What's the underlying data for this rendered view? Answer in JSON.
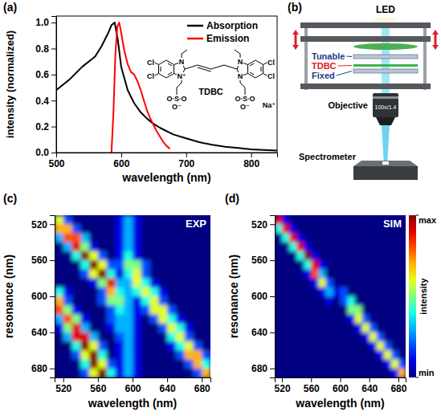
{
  "chart_data": [
    {
      "type": "line",
      "panel": "(a)",
      "x_label": "wavelength (nm)",
      "y_label": "intensity (normalized)",
      "xlim": [
        500,
        840
      ],
      "ylim": [
        0,
        1.05
      ],
      "xticks": [
        500,
        600,
        700,
        800
      ],
      "yticks": [
        {
          "value": 0,
          "label": "0.0"
        },
        0.2,
        0.4,
        0.6,
        0.8,
        {
          "value": 1,
          "label": "1.0"
        }
      ],
      "legend": "top-right",
      "series": [
        {
          "name": "Absorption",
          "color": "#000000",
          "x": [
            500,
            510,
            520,
            530,
            540,
            550,
            560,
            570,
            580,
            585,
            590,
            595,
            600,
            610,
            620,
            630,
            640,
            650,
            660,
            680,
            700,
            720,
            740,
            760,
            780,
            800,
            820,
            840
          ],
          "values": [
            0.48,
            0.52,
            0.56,
            0.61,
            0.66,
            0.7,
            0.74,
            0.82,
            0.92,
            0.98,
            1.0,
            0.86,
            0.66,
            0.48,
            0.38,
            0.31,
            0.26,
            0.22,
            0.19,
            0.14,
            0.11,
            0.08,
            0.06,
            0.045,
            0.035,
            0.025,
            0.02,
            0.015
          ]
        },
        {
          "name": "Emission",
          "color": "#ff0000",
          "x": [
            585,
            588,
            591,
            594,
            597,
            600,
            605,
            610,
            615,
            620,
            625,
            630,
            635,
            640,
            645,
            650,
            655,
            660,
            665,
            670,
            675
          ],
          "values": [
            0.0,
            0.3,
            0.75,
            0.97,
            1.0,
            0.92,
            0.78,
            0.68,
            0.62,
            0.6,
            0.55,
            0.48,
            0.4,
            0.32,
            0.26,
            0.21,
            0.16,
            0.12,
            0.08,
            0.05,
            0.03
          ]
        }
      ]
    },
    {
      "type": "heatmap",
      "panel": "(c)",
      "annotation": "EXP",
      "x_label": "wavelength (nm)",
      "y_label": "resonance (nm)",
      "xlim": [
        510,
        690
      ],
      "ylim": [
        690,
        510
      ],
      "xticks": [
        520,
        560,
        600,
        640,
        680
      ],
      "yticks": [
        520,
        560,
        600,
        640,
        680
      ],
      "zlim": [
        0,
        10
      ],
      "x": [
        515,
        525,
        535,
        545,
        555,
        565,
        575,
        585,
        595,
        605,
        615,
        625,
        635,
        645,
        655,
        665,
        675,
        685
      ],
      "y": [
        515,
        525,
        535,
        545,
        555,
        565,
        575,
        585,
        595,
        605,
        615,
        625,
        635,
        645,
        655,
        665,
        675,
        685
      ],
      "z": [
        [
          6,
          2,
          0,
          0,
          0,
          0,
          0,
          1,
          3,
          1,
          0,
          0,
          0,
          0,
          0,
          0,
          0,
          0
        ],
        [
          7,
          7,
          2,
          0,
          0,
          0,
          0,
          1,
          3,
          1,
          0,
          0,
          0,
          0,
          0,
          0,
          0,
          0
        ],
        [
          3,
          8,
          8,
          3,
          0,
          0,
          0,
          1,
          3,
          1,
          0,
          0,
          0,
          0,
          0,
          0,
          0,
          0
        ],
        [
          0,
          3,
          9,
          5,
          1,
          0,
          0,
          1,
          3,
          1,
          0,
          0,
          0,
          0,
          0,
          0,
          0,
          0
        ],
        [
          0,
          0,
          4,
          10,
          6,
          2,
          0,
          1,
          4,
          1,
          0,
          0,
          0,
          0,
          0,
          0,
          0,
          0
        ],
        [
          0,
          0,
          0,
          4,
          10,
          6,
          2,
          2,
          5,
          5,
          2,
          0,
          0,
          0,
          0,
          0,
          0,
          0
        ],
        [
          0,
          0,
          0,
          2,
          6,
          10,
          4,
          1,
          4,
          6,
          2,
          0,
          0,
          0,
          0,
          0,
          0,
          0
        ],
        [
          0,
          0,
          0,
          0,
          1,
          5,
          9,
          3,
          3,
          6,
          4,
          1,
          0,
          0,
          0,
          0,
          0,
          0
        ],
        [
          4,
          1,
          0,
          0,
          0,
          2,
          7,
          4,
          3,
          4,
          6,
          4,
          1,
          0,
          0,
          0,
          0,
          0
        ],
        [
          7,
          2,
          0,
          0,
          0,
          2,
          5,
          5,
          3,
          1,
          4,
          6,
          2,
          0,
          0,
          0,
          0,
          0
        ],
        [
          8,
          5,
          1,
          0,
          0,
          0,
          2,
          4,
          3,
          1,
          2,
          6,
          6,
          2,
          0,
          0,
          0,
          0
        ],
        [
          3,
          8,
          5,
          1,
          0,
          0,
          2,
          3,
          3,
          1,
          0,
          2,
          6,
          4,
          1,
          0,
          0,
          0
        ],
        [
          1,
          5,
          9,
          3,
          0,
          0,
          1,
          3,
          3,
          1,
          0,
          0,
          2,
          6,
          4,
          1,
          0,
          0
        ],
        [
          0,
          3,
          9,
          9,
          3,
          0,
          0,
          2,
          3,
          1,
          0,
          0,
          0,
          4,
          6,
          2,
          0,
          0
        ],
        [
          0,
          0,
          4,
          10,
          6,
          2,
          0,
          1,
          3,
          1,
          0,
          0,
          0,
          1,
          4,
          6,
          2,
          0
        ],
        [
          0,
          0,
          2,
          6,
          10,
          4,
          0,
          1,
          3,
          1,
          0,
          0,
          0,
          0,
          2,
          7,
          7,
          2
        ],
        [
          0,
          0,
          0,
          4,
          10,
          6,
          2,
          1,
          3,
          1,
          0,
          0,
          0,
          0,
          0,
          2,
          7,
          4
        ],
        [
          0,
          0,
          0,
          2,
          6,
          10,
          4,
          1,
          3,
          1,
          0,
          0,
          0,
          0,
          0,
          0,
          2,
          7
        ]
      ]
    },
    {
      "type": "heatmap",
      "panel": "(d)",
      "annotation": "SIM",
      "x_label": "wavelength (nm)",
      "y_label": "resonance (nm)",
      "xlim": [
        510,
        690
      ],
      "ylim": [
        690,
        510
      ],
      "xticks": [
        520,
        560,
        600,
        640,
        680
      ],
      "yticks": [
        520,
        560,
        600,
        640,
        680
      ],
      "colorbar": {
        "range": [
          0,
          10
        ],
        "ticks": [
          {
            "value": 0,
            "label": "min"
          },
          {
            "value": 10,
            "label": "max"
          }
        ],
        "label": "intensity"
      },
      "x": [
        515,
        525,
        535,
        545,
        555,
        565,
        575,
        585,
        595,
        605,
        615,
        625,
        635,
        645,
        655,
        665,
        675,
        685
      ],
      "y": [
        515,
        525,
        535,
        545,
        555,
        565,
        575,
        585,
        595,
        605,
        615,
        625,
        635,
        645,
        655,
        665,
        675,
        685
      ],
      "z": [
        [
          9,
          1,
          0,
          0,
          0,
          0,
          0,
          0,
          0,
          0,
          0,
          0,
          0,
          0,
          0,
          0,
          0,
          0
        ],
        [
          4,
          9,
          1,
          0,
          0,
          0,
          0,
          0,
          0,
          0,
          0,
          0,
          0,
          0,
          0,
          0,
          0,
          0
        ],
        [
          0,
          4,
          9,
          1,
          0,
          0,
          0,
          0,
          0,
          0,
          0,
          0,
          0,
          0,
          0,
          0,
          0,
          0
        ],
        [
          0,
          0,
          4,
          9,
          1,
          0,
          0,
          0,
          0,
          0,
          0,
          0,
          0,
          0,
          0,
          0,
          0,
          0
        ],
        [
          0,
          0,
          0,
          4,
          10,
          1,
          0,
          0,
          0,
          0,
          0,
          0,
          0,
          0,
          0,
          0,
          0,
          0
        ],
        [
          0,
          0,
          0,
          0,
          4,
          9,
          1,
          0,
          0,
          0,
          0,
          0,
          0,
          0,
          0,
          0,
          0,
          0
        ],
        [
          0,
          0,
          0,
          0,
          1,
          8,
          3,
          0,
          0,
          0,
          0,
          0,
          0,
          0,
          0,
          0,
          0,
          0
        ],
        [
          0,
          0,
          0,
          0,
          0,
          1,
          6,
          2,
          0,
          0,
          0,
          0,
          0,
          0,
          0,
          0,
          0,
          0
        ],
        [
          0,
          0,
          0,
          0,
          0,
          0,
          1,
          3,
          1,
          2,
          0,
          0,
          0,
          0,
          0,
          0,
          0,
          0
        ],
        [
          0,
          0,
          0,
          0,
          0,
          0,
          0,
          1,
          0,
          2,
          4,
          0,
          0,
          0,
          0,
          0,
          0,
          0
        ],
        [
          0,
          0,
          0,
          0,
          0,
          0,
          0,
          0,
          0,
          0,
          5,
          5,
          0,
          0,
          0,
          0,
          0,
          0
        ],
        [
          0,
          0,
          0,
          0,
          0,
          0,
          0,
          0,
          0,
          0,
          1,
          6,
          2,
          0,
          0,
          0,
          0,
          0
        ],
        [
          0,
          0,
          0,
          0,
          0,
          0,
          0,
          0,
          0,
          0,
          0,
          1,
          6,
          2,
          0,
          0,
          0,
          0
        ],
        [
          0,
          0,
          0,
          0,
          0,
          0,
          0,
          0,
          0,
          0,
          0,
          0,
          1,
          6,
          2,
          0,
          0,
          0
        ],
        [
          0,
          0,
          0,
          0,
          0,
          0,
          0,
          0,
          0,
          0,
          0,
          0,
          0,
          1,
          6,
          2,
          0,
          0
        ],
        [
          0,
          0,
          0,
          0,
          0,
          0,
          0,
          0,
          0,
          0,
          0,
          0,
          0,
          0,
          1,
          6,
          2,
          0
        ],
        [
          0,
          0,
          0,
          0,
          0,
          0,
          0,
          0,
          0,
          0,
          0,
          0,
          0,
          0,
          0,
          1,
          6,
          2
        ],
        [
          0,
          0,
          0,
          0,
          0,
          0,
          0,
          0,
          0,
          0,
          0,
          0,
          0,
          0,
          0,
          0,
          1,
          7
        ]
      ]
    }
  ],
  "structure": {
    "name": "TDBC",
    "counterion": "Na⁺",
    "halogen": "Cl",
    "nitrogen": "N",
    "cationic_nitrogen": "N⁺",
    "sulfur": "S",
    "oxygen": "O",
    "oxide": "O⁻"
  },
  "schematic": {
    "panel": "(b)",
    "source": "LED",
    "tunable": "Tunable",
    "sample": "TDBC",
    "fixed": "Fixed",
    "objective": "Objective",
    "objective_spec": "100x/1.4",
    "detector": "Spectrometer"
  }
}
